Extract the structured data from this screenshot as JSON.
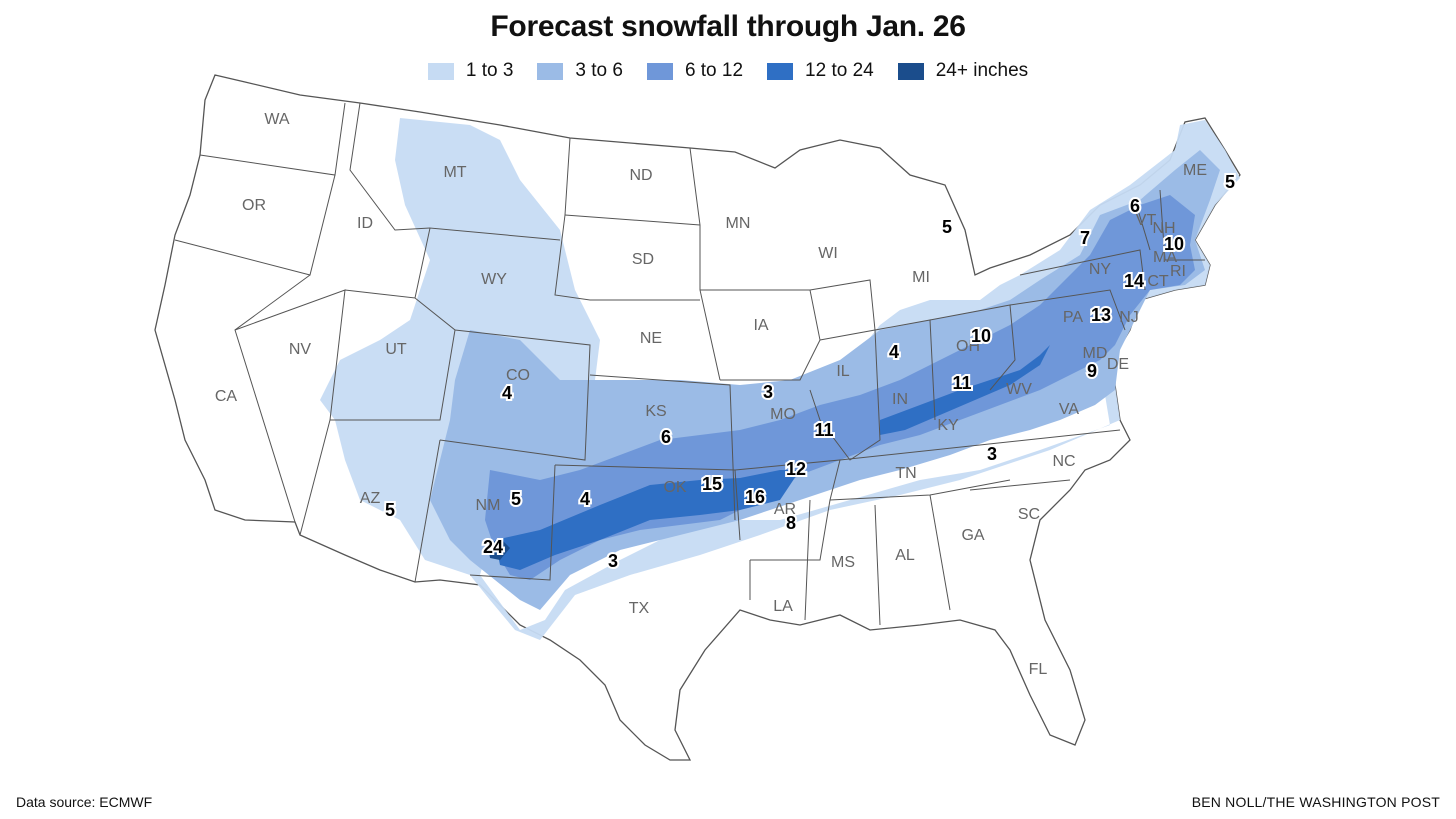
{
  "title": "Forecast snowfall through Jan. 26",
  "legend": [
    {
      "label": "1 to 3",
      "color": "#c6dbf3"
    },
    {
      "label": "3 to 6",
      "color": "#9bbbe6"
    },
    {
      "label": "6 to 12",
      "color": "#6f97d9"
    },
    {
      "label": "12 to 24",
      "color": "#2f6fc4"
    },
    {
      "label": "24+ inches",
      "color": "#1b4d8c"
    }
  ],
  "state_labels": [
    "WA",
    "OR",
    "CA",
    "ID",
    "NV",
    "MT",
    "WY",
    "UT",
    "AZ",
    "CO",
    "NM",
    "ND",
    "SD",
    "NE",
    "KS",
    "OK",
    "TX",
    "MN",
    "IA",
    "MO",
    "AR",
    "LA",
    "WI",
    "IL",
    "MS",
    "MI",
    "IN",
    "KY",
    "TN",
    "AL",
    "OH",
    "WV",
    "GA",
    "FL",
    "VA",
    "NC",
    "SC",
    "PA",
    "NY",
    "MD",
    "DE",
    "NJ",
    "CT",
    "RI",
    "MA",
    "VT",
    "NH",
    "ME"
  ],
  "snow_totals": [
    "5",
    "4",
    "5",
    "4",
    "24",
    "6",
    "3",
    "15",
    "16",
    "8",
    "12",
    "11",
    "3",
    "4",
    "11",
    "10",
    "3",
    "9",
    "13",
    "14",
    "7",
    "6",
    "10",
    "5",
    "5"
  ],
  "footer": {
    "source": "Data source: ECMWF",
    "credit": "BEN NOLL/THE WASHINGTON POST"
  }
}
